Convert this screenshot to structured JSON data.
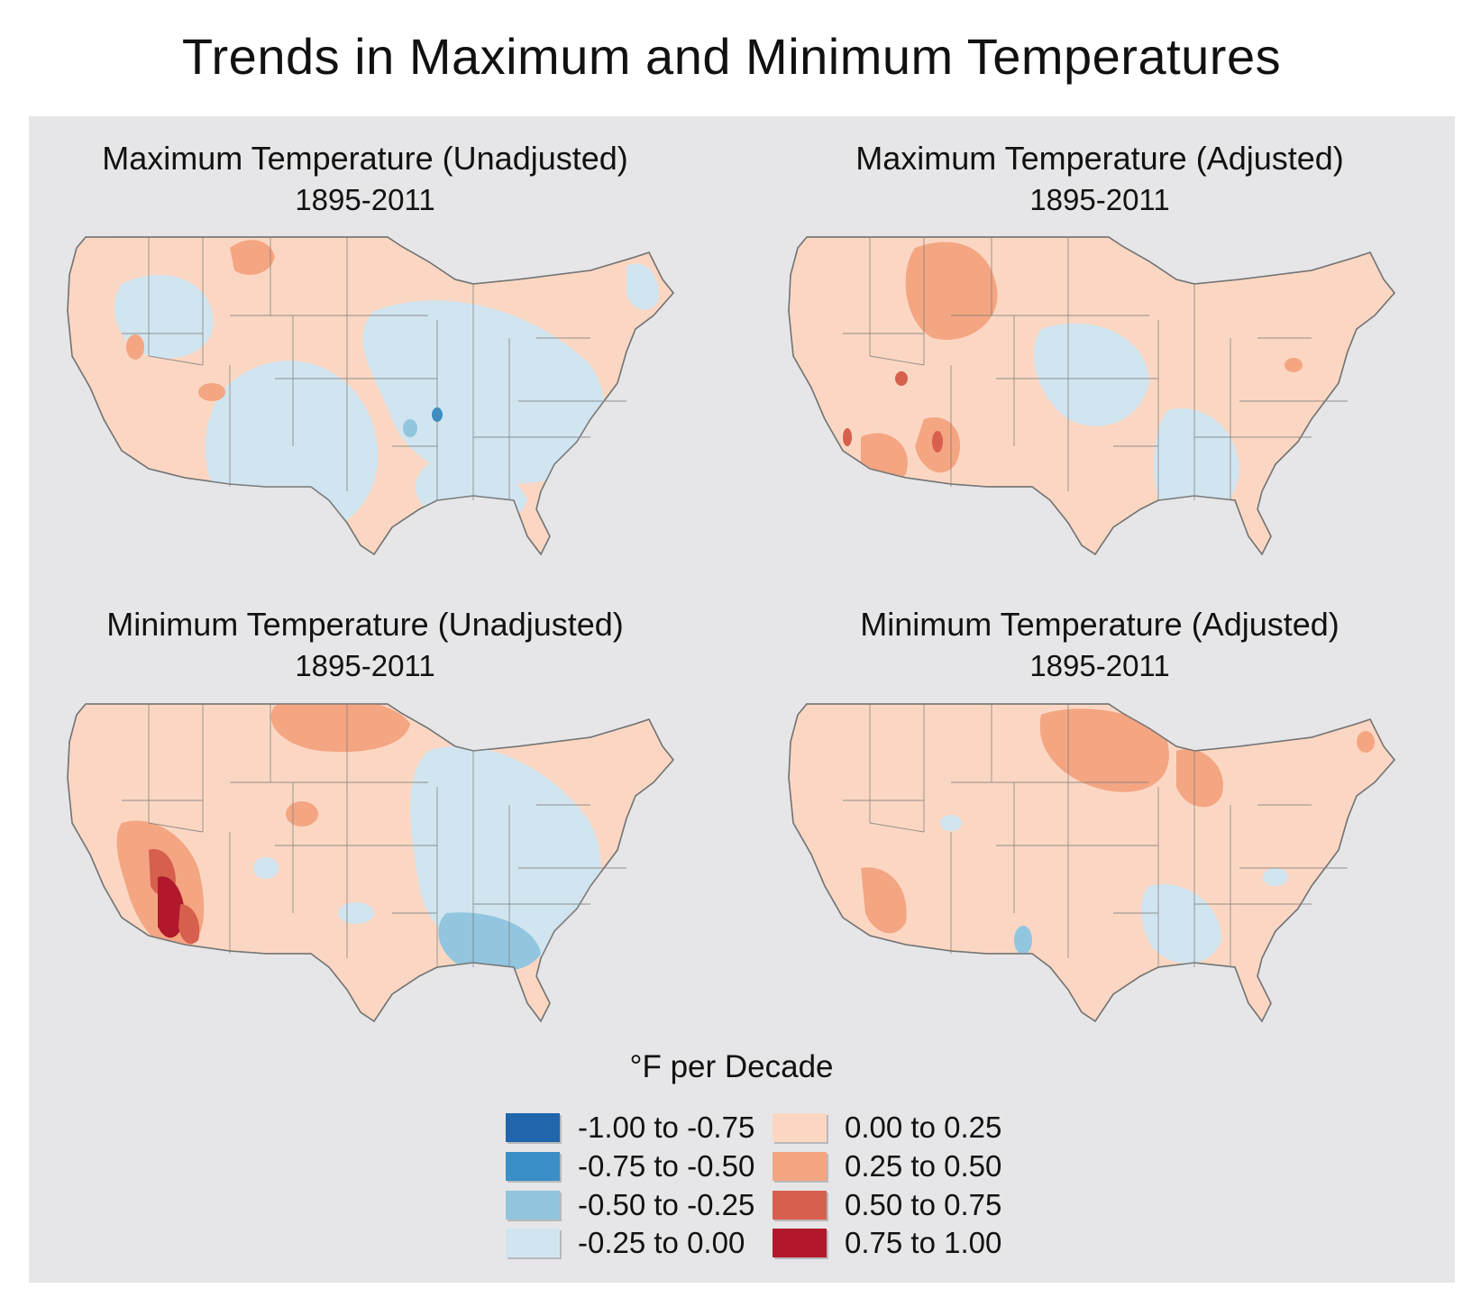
{
  "title": "Trends in Maximum and Minimum Temperatures",
  "maps": [
    {
      "title": "Maximum Temperature (Unadjusted)",
      "years": "1895-2011"
    },
    {
      "title": "Maximum Temperature (Adjusted)",
      "years": "1895-2011"
    },
    {
      "title": "Minimum Temperature (Unadjusted)",
      "years": "1895-2011"
    },
    {
      "title": "Minimum Temperature (Adjusted)",
      "years": "1895-2011"
    }
  ],
  "legend": {
    "title": "°F per Decade",
    "items": [
      {
        "label": "-1.00 to -0.75",
        "color": "#2166ac"
      },
      {
        "label": "-0.75 to -0.50",
        "color": "#3a8fc7"
      },
      {
        "label": "-0.50 to -0.25",
        "color": "#92c5de"
      },
      {
        "label": "-0.25 to 0.00",
        "color": "#d1e5f0"
      },
      {
        "label": "0.00 to 0.25",
        "color": "#fbd7c3"
      },
      {
        "label": "0.25 to 0.50",
        "color": "#f4a582"
      },
      {
        "label": "0.50 to 0.75",
        "color": "#d6604d"
      },
      {
        "label": "0.75 to 1.00",
        "color": "#b2182b"
      }
    ]
  }
}
